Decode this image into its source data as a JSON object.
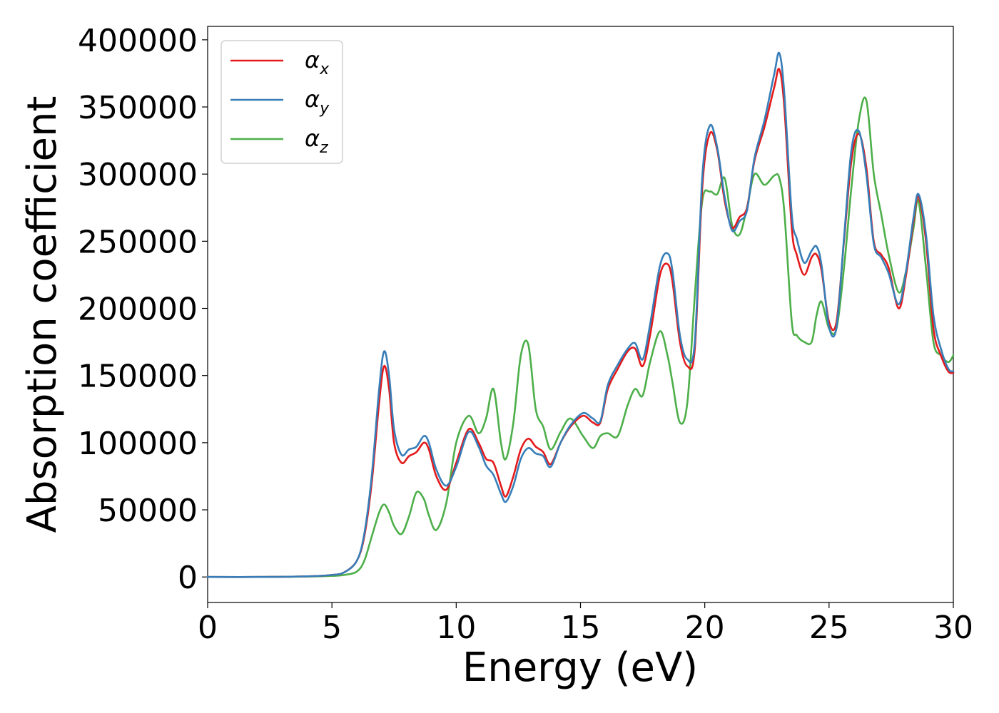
{
  "chart_data": {
    "type": "line",
    "title": "",
    "xlabel": "Energy (eV)",
    "ylabel": "Absorption coefficient",
    "xlim": [
      0,
      30
    ],
    "ylim": [
      -19000,
      410000
    ],
    "xticks": [
      0,
      5,
      10,
      15,
      20,
      25,
      30
    ],
    "xtick_labels": [
      "0",
      "5",
      "10",
      "15",
      "20",
      "25",
      "30"
    ],
    "yticks": [
      0,
      50000,
      100000,
      150000,
      200000,
      250000,
      300000,
      350000,
      400000
    ],
    "ytick_labels": [
      "0",
      "50000",
      "100000",
      "150000",
      "200000",
      "250000",
      "300000",
      "350000",
      "400000"
    ],
    "grid": false,
    "legend_position": "upper-left",
    "series": [
      {
        "name": "α",
        "subscript": "x",
        "color": "#e41a1c",
        "x": [
          0,
          2,
          4,
          5,
          5.5,
          6,
          6.3,
          6.6,
          6.9,
          7.1,
          7.3,
          7.5,
          7.8,
          8.1,
          8.4,
          8.7,
          8.9,
          9.2,
          9.6,
          10.0,
          10.5,
          10.9,
          11.2,
          11.5,
          11.8,
          12.0,
          12.3,
          12.6,
          12.9,
          13.2,
          13.5,
          13.8,
          14.2,
          14.6,
          15.1,
          15.5,
          15.8,
          16.1,
          16.5,
          16.9,
          17.2,
          17.5,
          17.8,
          18.2,
          18.5,
          18.7,
          19.0,
          19.3,
          19.6,
          19.9,
          20.2,
          20.5,
          20.8,
          21.1,
          21.4,
          21.7,
          22.0,
          22.4,
          22.8,
          23.0,
          23.2,
          23.5,
          23.7,
          24.0,
          24.3,
          24.5,
          24.7,
          25.0,
          25.3,
          25.6,
          25.9,
          26.2,
          26.5,
          26.8,
          27.1,
          27.4,
          27.8,
          28.1,
          28.4,
          28.6,
          28.9,
          29.2,
          29.5,
          29.8,
          30.0
        ],
        "y": [
          0,
          0,
          500,
          1500,
          3500,
          12000,
          30000,
          70000,
          130000,
          157000,
          140000,
          100000,
          85000,
          90000,
          93000,
          100000,
          95000,
          75000,
          65000,
          85000,
          110000,
          100000,
          88000,
          85000,
          68000,
          60000,
          75000,
          95000,
          103000,
          97000,
          93000,
          84000,
          100000,
          112000,
          120000,
          115000,
          115000,
          140000,
          155000,
          168000,
          170000,
          157000,
          180000,
          225000,
          233000,
          220000,
          175000,
          157000,
          170000,
          290000,
          330000,
          318000,
          280000,
          260000,
          268000,
          275000,
          310000,
          335000,
          365000,
          378000,
          350000,
          260000,
          240000,
          225000,
          238000,
          240000,
          228000,
          190000,
          190000,
          250000,
          310000,
          330000,
          305000,
          250000,
          240000,
          230000,
          200000,
          225000,
          265000,
          283000,
          250000,
          185000,
          165000,
          153000,
          152000
        ]
      },
      {
        "name": "α",
        "subscript": "y",
        "color": "#377eb8",
        "x": [
          0,
          2,
          4,
          5,
          5.5,
          6,
          6.3,
          6.6,
          6.9,
          7.1,
          7.3,
          7.5,
          7.8,
          8.1,
          8.4,
          8.7,
          8.9,
          9.2,
          9.6,
          10.0,
          10.5,
          10.9,
          11.2,
          11.5,
          11.8,
          12.0,
          12.3,
          12.6,
          12.9,
          13.2,
          13.5,
          13.8,
          14.2,
          14.6,
          15.1,
          15.5,
          15.8,
          16.1,
          16.5,
          16.9,
          17.2,
          17.5,
          17.8,
          18.2,
          18.5,
          18.7,
          19.0,
          19.3,
          19.6,
          19.9,
          20.2,
          20.5,
          20.8,
          21.1,
          21.4,
          21.7,
          22.0,
          22.4,
          22.8,
          23.0,
          23.2,
          23.5,
          23.7,
          24.0,
          24.3,
          24.5,
          24.7,
          25.0,
          25.3,
          25.6,
          25.9,
          26.2,
          26.5,
          26.8,
          27.1,
          27.4,
          27.8,
          28.1,
          28.4,
          28.6,
          28.9,
          29.2,
          29.5,
          29.8,
          30.0
        ],
        "y": [
          0,
          0,
          500,
          1500,
          3500,
          12000,
          32000,
          75000,
          140000,
          168000,
          150000,
          110000,
          91000,
          95000,
          97000,
          105000,
          100000,
          80000,
          68000,
          82000,
          108000,
          97000,
          83000,
          76000,
          62000,
          56000,
          68000,
          88000,
          96000,
          92000,
          90000,
          82000,
          100000,
          113000,
          122000,
          118000,
          116000,
          143000,
          158000,
          170000,
          174000,
          162000,
          188000,
          232000,
          241000,
          228000,
          180000,
          162000,
          175000,
          298000,
          336000,
          320000,
          283000,
          258000,
          265000,
          273000,
          312000,
          340000,
          375000,
          390000,
          360000,
          270000,
          252000,
          234000,
          243000,
          246000,
          232000,
          186000,
          186000,
          252000,
          318000,
          332000,
          300000,
          248000,
          238000,
          226000,
          203000,
          228000,
          268000,
          285000,
          255000,
          195000,
          170000,
          155000,
          153000
        ]
      },
      {
        "name": "α",
        "subscript": "z",
        "color": "#4daf4a",
        "x": [
          0,
          2,
          4,
          5,
          5.5,
          6,
          6.3,
          6.6,
          6.9,
          7.1,
          7.3,
          7.5,
          7.8,
          8.1,
          8.4,
          8.7,
          8.9,
          9.2,
          9.6,
          10.0,
          10.5,
          10.9,
          11.2,
          11.5,
          11.8,
          12.0,
          12.3,
          12.6,
          12.9,
          13.2,
          13.5,
          13.8,
          14.2,
          14.6,
          15.1,
          15.5,
          15.8,
          16.1,
          16.5,
          16.9,
          17.2,
          17.5,
          17.8,
          18.2,
          18.5,
          18.7,
          19.0,
          19.3,
          19.6,
          19.9,
          20.2,
          20.5,
          20.8,
          21.1,
          21.4,
          21.7,
          22.0,
          22.4,
          22.8,
          23.0,
          23.2,
          23.5,
          23.7,
          24.0,
          24.3,
          24.5,
          24.7,
          25.0,
          25.3,
          25.6,
          25.9,
          26.2,
          26.5,
          26.8,
          27.1,
          27.4,
          27.8,
          28.1,
          28.4,
          28.6,
          28.9,
          29.2,
          29.5,
          29.8,
          30.0
        ],
        "y": [
          0,
          0,
          300,
          800,
          1500,
          4000,
          12000,
          30000,
          48000,
          54000,
          48000,
          38000,
          32000,
          45000,
          63000,
          58000,
          46000,
          35000,
          55000,
          100000,
          120000,
          107000,
          118000,
          140000,
          100000,
          88000,
          115000,
          165000,
          173000,
          125000,
          112000,
          95000,
          108000,
          118000,
          105000,
          96000,
          105000,
          107000,
          105000,
          128000,
          140000,
          135000,
          160000,
          183000,
          165000,
          145000,
          115000,
          130000,
          210000,
          280000,
          287000,
          285000,
          297000,
          262000,
          255000,
          275000,
          300000,
          292000,
          299000,
          297000,
          272000,
          190000,
          180000,
          175000,
          175000,
          195000,
          205000,
          185000,
          185000,
          230000,
          290000,
          340000,
          355000,
          300000,
          270000,
          240000,
          212000,
          228000,
          260000,
          280000,
          230000,
          175000,
          165000,
          160000,
          165000
        ]
      }
    ]
  }
}
